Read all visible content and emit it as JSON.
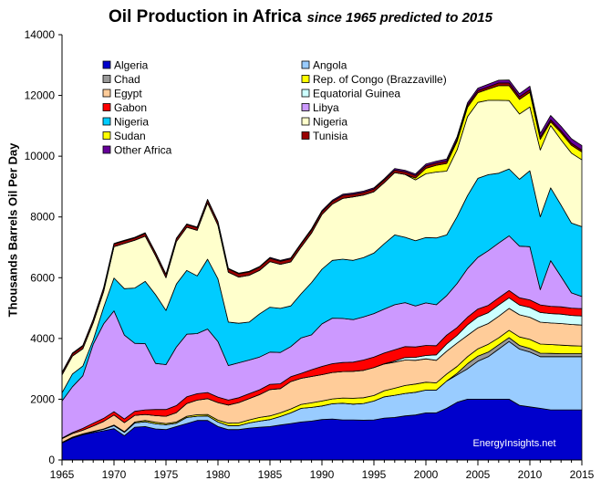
{
  "chart_data": {
    "type": "area",
    "stacked": true,
    "title": "Oil Production in Africa",
    "subtitle": "since 1965 predicted to 2015",
    "ylabel": "Thousands Barrels Oil Per Day",
    "xlabel": "",
    "xlim": [
      1965,
      2015
    ],
    "ylim": [
      0,
      14000
    ],
    "xticks": [
      "1965",
      "1970",
      "1975",
      "1980",
      "1985",
      "1990",
      "1995",
      "2000",
      "2005",
      "2010",
      "2015"
    ],
    "yticks": [
      "0",
      "2000",
      "4000",
      "6000",
      "8000",
      "10000",
      "12000",
      "14000"
    ],
    "watermark": "EnergyInsights.net",
    "legend_position": "top",
    "x": [
      1965,
      1966,
      1967,
      1968,
      1969,
      1970,
      1971,
      1972,
      1973,
      1974,
      1975,
      1976,
      1977,
      1978,
      1979,
      1980,
      1981,
      1982,
      1983,
      1984,
      1985,
      1986,
      1987,
      1988,
      1989,
      1990,
      1991,
      1992,
      1993,
      1994,
      1995,
      1996,
      1997,
      1998,
      1999,
      2000,
      2001,
      2002,
      2003,
      2004,
      2005,
      2006,
      2007,
      2008,
      2009,
      2010,
      2011,
      2012,
      2013,
      2014,
      2015
    ],
    "series": [
      {
        "name": "Algeria",
        "color": "#0000cc",
        "values": [
          560,
          720,
          830,
          900,
          960,
          1030,
          800,
          1080,
          1100,
          1020,
          1000,
          1100,
          1200,
          1300,
          1300,
          1100,
          1000,
          1000,
          1050,
          1080,
          1100,
          1150,
          1200,
          1250,
          1280,
          1330,
          1350,
          1320,
          1320,
          1310,
          1320,
          1380,
          1400,
          1450,
          1480,
          1550,
          1550,
          1700,
          1900,
          2000,
          2000,
          2000,
          2000,
          2000,
          1800,
          1750,
          1700,
          1650,
          1650,
          1650,
          1650
        ]
      },
      {
        "name": "Angola",
        "color": "#99ccff",
        "values": [
          10,
          20,
          20,
          30,
          50,
          100,
          110,
          140,
          160,
          170,
          160,
          110,
          200,
          140,
          150,
          150,
          130,
          130,
          170,
          200,
          230,
          280,
          350,
          450,
          450,
          450,
          500,
          550,
          520,
          550,
          620,
          700,
          730,
          740,
          750,
          750,
          750,
          900,
          900,
          1000,
          1250,
          1400,
          1650,
          1900,
          1850,
          1800,
          1700,
          1750,
          1750,
          1750,
          1750
        ]
      },
      {
        "name": "Chad",
        "color": "#999999",
        "values": [
          0,
          0,
          0,
          0,
          0,
          0,
          0,
          0,
          0,
          0,
          0,
          0,
          0,
          0,
          0,
          0,
          0,
          0,
          0,
          0,
          0,
          0,
          0,
          0,
          0,
          0,
          0,
          0,
          0,
          0,
          0,
          0,
          0,
          0,
          0,
          0,
          0,
          0,
          50,
          170,
          170,
          150,
          140,
          130,
          120,
          120,
          115,
          110,
          100,
          100,
          100
        ]
      },
      {
        "name": "Rep. of Congo (Brazzaville)",
        "color": "#ffff00",
        "values": [
          10,
          10,
          10,
          10,
          10,
          20,
          20,
          30,
          40,
          50,
          40,
          40,
          40,
          50,
          50,
          60,
          80,
          90,
          100,
          120,
          120,
          120,
          130,
          130,
          150,
          160,
          160,
          170,
          190,
          190,
          180,
          200,
          230,
          260,
          270,
          260,
          240,
          230,
          230,
          230,
          240,
          260,
          230,
          240,
          280,
          300,
          300,
          290,
          280,
          260,
          250
        ]
      },
      {
        "name": "Egypt",
        "color": "#ffcc99",
        "values": [
          120,
          120,
          120,
          180,
          250,
          330,
          300,
          220,
          200,
          220,
          240,
          310,
          420,
          480,
          520,
          580,
          600,
          670,
          700,
          750,
          870,
          800,
          900,
          860,
          870,
          870,
          870,
          870,
          890,
          900,
          920,
          880,
          860,
          840,
          780,
          770,
          740,
          750,
          770,
          700,
          690,
          680,
          710,
          720,
          730,
          730,
          720,
          710,
          710,
          700,
          690
        ]
      },
      {
        "name": "Equatorial Guinea",
        "color": "#ccffff",
        "values": [
          0,
          0,
          0,
          0,
          0,
          0,
          0,
          0,
          0,
          0,
          0,
          0,
          0,
          0,
          0,
          0,
          0,
          0,
          0,
          0,
          0,
          0,
          0,
          0,
          0,
          0,
          0,
          0,
          0,
          0,
          0,
          10,
          40,
          80,
          100,
          110,
          180,
          240,
          250,
          350,
          360,
          360,
          370,
          350,
          320,
          320,
          320,
          310,
          310,
          300,
          300
        ]
      },
      {
        "name": "Gabon",
        "color": "#ff0000",
        "values": [
          20,
          30,
          60,
          90,
          100,
          110,
          120,
          130,
          150,
          200,
          220,
          230,
          220,
          210,
          200,
          180,
          160,
          160,
          160,
          160,
          170,
          160,
          160,
          160,
          220,
          270,
          290,
          300,
          300,
          340,
          350,
          350,
          370,
          360,
          340,
          330,
          300,
          290,
          260,
          250,
          260,
          240,
          240,
          240,
          240,
          250,
          250,
          240,
          240,
          240,
          240
        ]
      },
      {
        "name": "Libya",
        "color": "#cc99ff",
        "values": [
          1220,
          1510,
          1730,
          2600,
          3110,
          3320,
          2760,
          2240,
          2180,
          1520,
          1480,
          1930,
          2060,
          1980,
          2090,
          1830,
          1140,
          1150,
          1110,
          1080,
          1060,
          1030,
          990,
          1170,
          1150,
          1400,
          1500,
          1450,
          1400,
          1420,
          1430,
          1450,
          1480,
          1450,
          1350,
          1400,
          1350,
          1300,
          1450,
          1600,
          1700,
          1800,
          1800,
          1800,
          1700,
          1750,
          500,
          1500,
          1000,
          500,
          400
        ]
      },
      {
        "name": "Nigeria",
        "color": "#00ccff",
        "values": [
          270,
          420,
          320,
          140,
          540,
          1080,
          1530,
          1820,
          2050,
          2260,
          1780,
          2070,
          2100,
          1900,
          2300,
          2060,
          1430,
          1300,
          1250,
          1420,
          1480,
          1450,
          1340,
          1450,
          1720,
          1800,
          1900,
          1950,
          1950,
          1950,
          1990,
          2150,
          2300,
          2150,
          2150,
          2150,
          2200,
          2000,
          2200,
          2400,
          2600,
          2500,
          2300,
          2200,
          2200,
          2500,
          2400,
          2400,
          2350,
          2300,
          2300
        ]
      },
      {
        "name": "Nigeria",
        "color": "#ffffcc",
        "values": [
          590,
          590,
          570,
          560,
          520,
          1030,
          1490,
          1570,
          1490,
          1280,
          1080,
          1400,
          1420,
          1500,
          1850,
          1760,
          1640,
          1520,
          1540,
          1430,
          1500,
          1450,
          1450,
          1540,
          1630,
          1800,
          1850,
          2000,
          2090,
          2060,
          2020,
          2010,
          2050,
          2070,
          2000,
          2100,
          2170,
          2100,
          2200,
          2600,
          2500,
          2450,
          2400,
          2250,
          2150,
          2100,
          2200,
          2050,
          2150,
          2300,
          2200
        ]
      },
      {
        "name": "Sudan",
        "color": "#ffff00",
        "values": [
          0,
          0,
          0,
          0,
          0,
          0,
          0,
          0,
          0,
          0,
          0,
          0,
          0,
          0,
          0,
          0,
          0,
          0,
          0,
          0,
          0,
          0,
          0,
          0,
          0,
          0,
          0,
          0,
          0,
          0,
          0,
          0,
          0,
          0,
          60,
          180,
          220,
          250,
          280,
          310,
          320,
          370,
          480,
          490,
          480,
          480,
          350,
          120,
          230,
          260,
          260
        ]
      },
      {
        "name": "Tunisia",
        "color": "#990000",
        "values": [
          70,
          80,
          90,
          100,
          110,
          90,
          80,
          80,
          90,
          90,
          100,
          90,
          90,
          90,
          100,
          110,
          110,
          110,
          110,
          110,
          110,
          100,
          100,
          100,
          100,
          90,
          90,
          100,
          90,
          90,
          90,
          90,
          85,
          85,
          85,
          80,
          75,
          75,
          70,
          70,
          70,
          70,
          90,
          90,
          85,
          85,
          75,
          70,
          65,
          65,
          60
        ]
      },
      {
        "name": "Other Africa",
        "color": "#660099",
        "values": [
          20,
          20,
          20,
          20,
          20,
          20,
          20,
          20,
          20,
          20,
          20,
          20,
          20,
          20,
          20,
          20,
          20,
          20,
          20,
          20,
          30,
          30,
          30,
          30,
          40,
          40,
          40,
          40,
          40,
          40,
          40,
          40,
          50,
          50,
          50,
          60,
          60,
          70,
          80,
          80,
          80,
          90,
          90,
          100,
          100,
          120,
          120,
          140,
          150,
          150,
          150
        ]
      }
    ]
  }
}
